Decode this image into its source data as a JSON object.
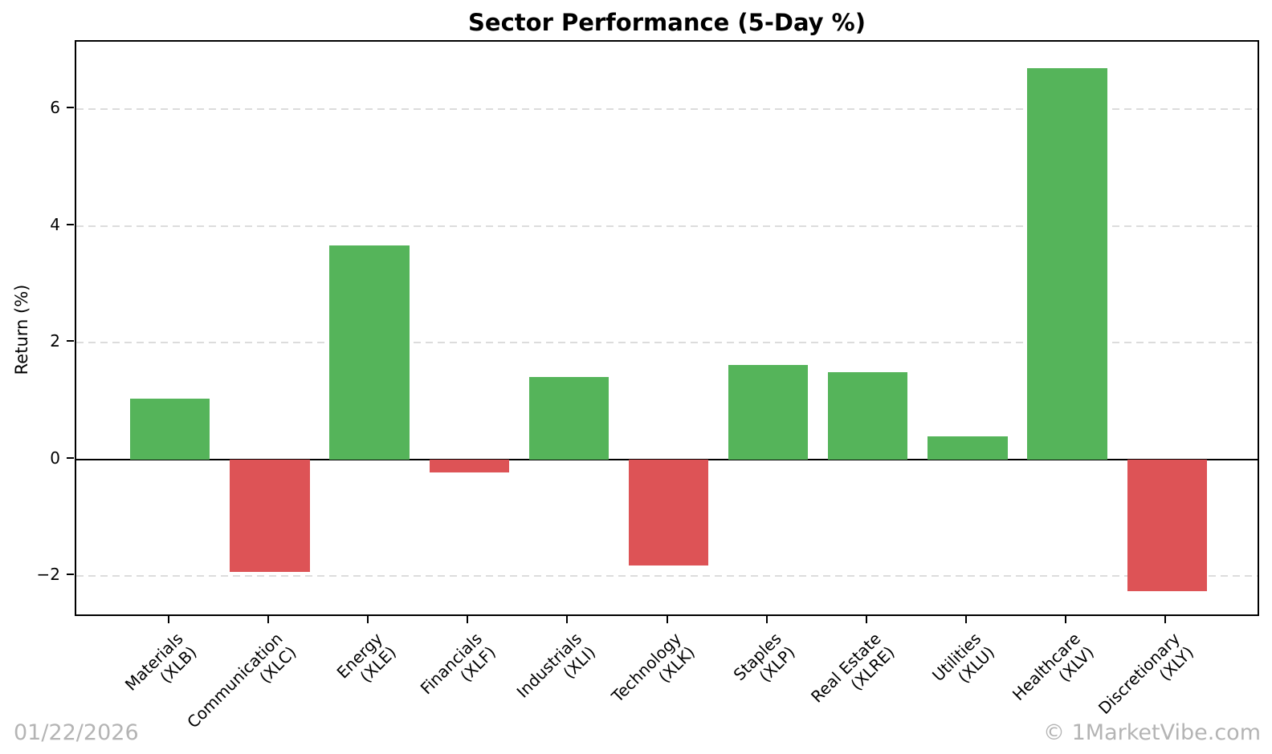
{
  "title": "Sector Performance (5-Day %)",
  "watermarks": {
    "date": "01/22/2026",
    "brand": "© 1MarketVibe.com"
  },
  "chart_data": {
    "type": "bar",
    "title": "Sector Performance (5-Day %)",
    "xlabel": "",
    "ylabel": "Return (%)",
    "categories": [
      {
        "name": "Materials",
        "ticker": "(XLB)"
      },
      {
        "name": "Communication",
        "ticker": "(XLC)"
      },
      {
        "name": "Energy",
        "ticker": "(XLE)"
      },
      {
        "name": "Financials",
        "ticker": "(XLF)"
      },
      {
        "name": "Industrials",
        "ticker": "(XLI)"
      },
      {
        "name": "Technology",
        "ticker": "(XLK)"
      },
      {
        "name": "Staples",
        "ticker": "(XLP)"
      },
      {
        "name": "Real Estate",
        "ticker": "(XLRE)"
      },
      {
        "name": "Utilities",
        "ticker": "(XLU)"
      },
      {
        "name": "Healthcare",
        "ticker": "(XLV)"
      },
      {
        "name": "Discretionary",
        "ticker": "(XLY)"
      }
    ],
    "values": [
      1.04,
      -1.93,
      3.67,
      -0.22,
      1.42,
      -1.82,
      1.62,
      1.5,
      0.4,
      6.71,
      -2.26
    ],
    "ylim": [
      -2.71,
      7.16
    ],
    "xlim": [
      -0.94,
      10.94
    ],
    "bar_width_units": 0.8,
    "yticks": [
      6,
      4,
      2,
      0,
      -2
    ],
    "grid": "horizontal dashed",
    "legend": "none",
    "colors": {
      "positive": "#55b45a",
      "negative": "#dd5356",
      "gridline": "#dcdcdc",
      "axis": "#000000",
      "watermark": "#b4b4b4"
    }
  }
}
